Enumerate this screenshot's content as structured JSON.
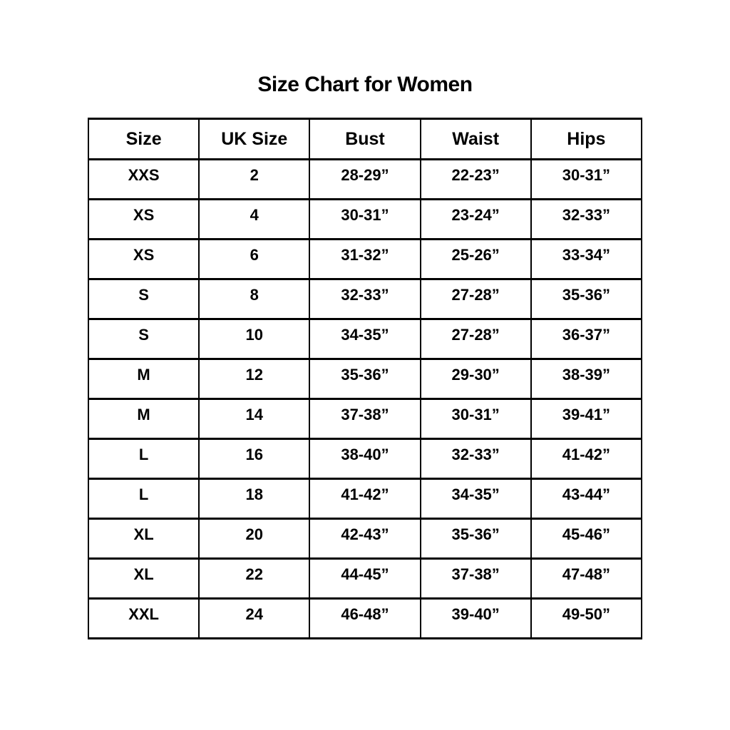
{
  "title": "Size Chart for Women",
  "colors": {
    "background": "#ffffff",
    "text": "#000000",
    "border": "#000000"
  },
  "chart_data": {
    "type": "table",
    "title": "Size Chart for Women",
    "columns": [
      "Size",
      "UK Size",
      "Bust",
      "Waist",
      "Hips"
    ],
    "rows": [
      [
        "XXS",
        "2",
        "28-29”",
        "22-23”",
        "30-31”"
      ],
      [
        "XS",
        "4",
        "30-31”",
        "23-24”",
        "32-33”"
      ],
      [
        "XS",
        "6",
        "31-32”",
        "25-26”",
        "33-34”"
      ],
      [
        "S",
        "8",
        "32-33”",
        "27-28”",
        "35-36”"
      ],
      [
        "S",
        "10",
        "34-35”",
        "27-28”",
        "36-37”"
      ],
      [
        "M",
        "12",
        "35-36”",
        "29-30”",
        "38-39”"
      ],
      [
        "M",
        "14",
        "37-38”",
        "30-31”",
        "39-41”"
      ],
      [
        "L",
        "16",
        "38-40”",
        "32-33”",
        "41-42”"
      ],
      [
        "L",
        "18",
        "41-42”",
        "34-35”",
        "43-44”"
      ],
      [
        "XL",
        "20",
        "42-43”",
        "35-36”",
        "45-46”"
      ],
      [
        "XL",
        "22",
        "44-45”",
        "37-38”",
        "47-48”"
      ],
      [
        "XXL",
        "24",
        "46-48”",
        "39-40”",
        "49-50”"
      ]
    ]
  }
}
